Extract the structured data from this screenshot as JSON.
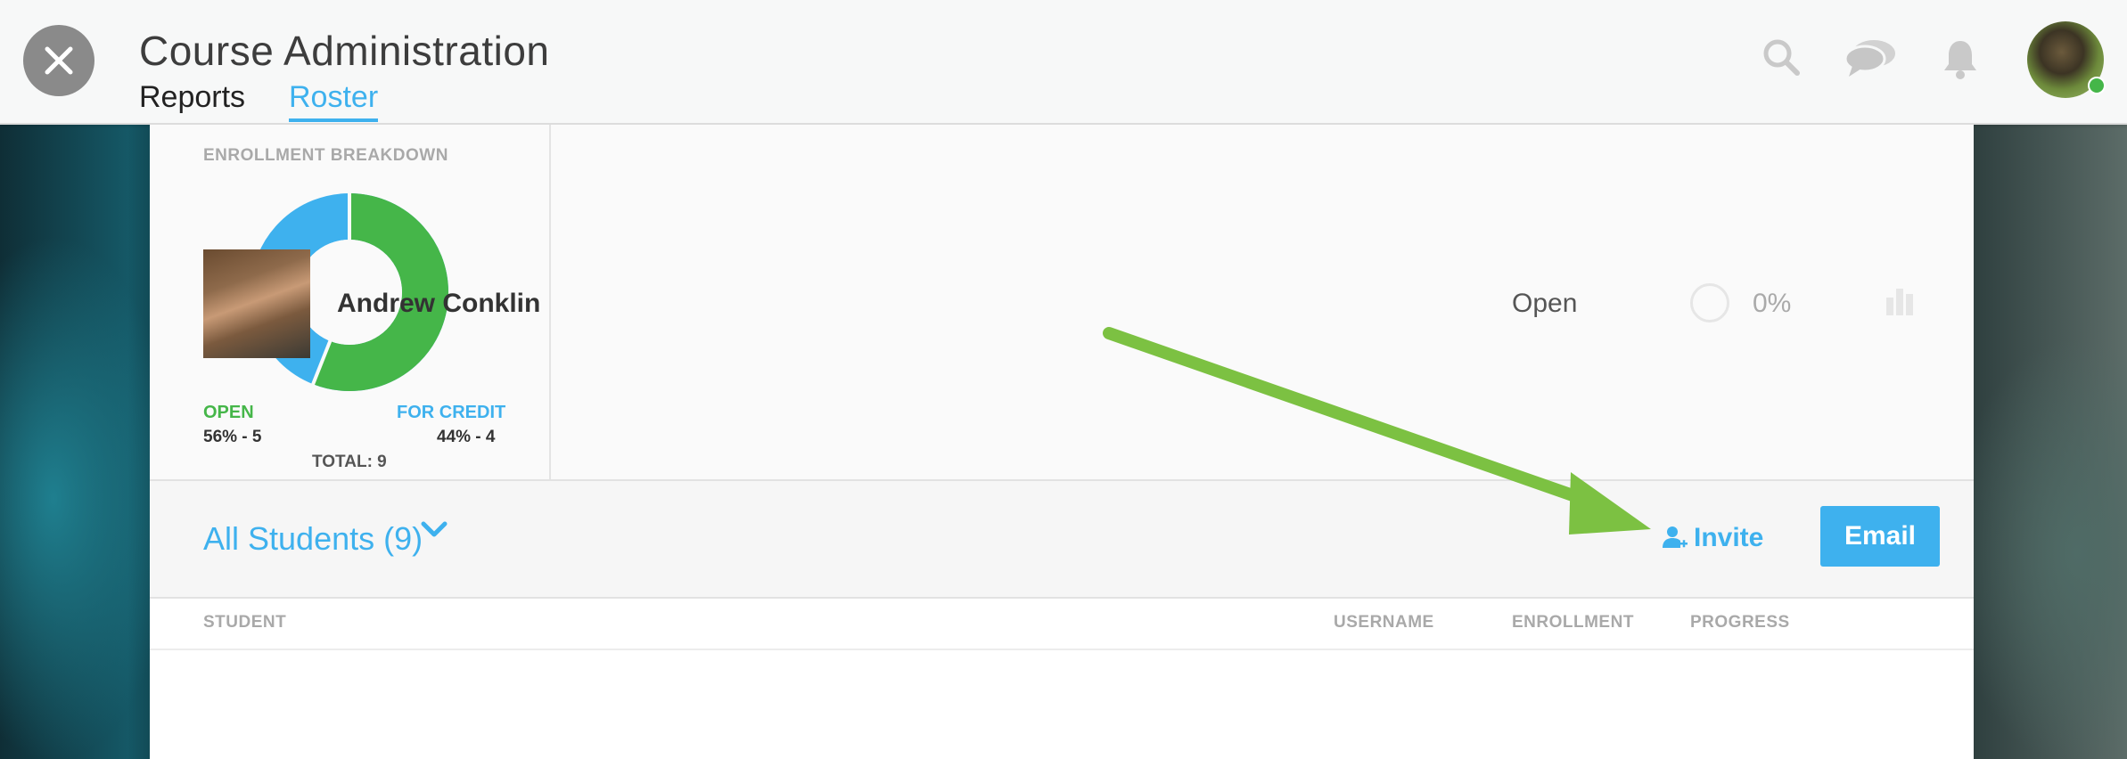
{
  "header": {
    "title": "Course Administration",
    "tabs": [
      {
        "label": "Reports",
        "active": false
      },
      {
        "label": "Roster",
        "active": true
      }
    ],
    "icons": [
      "search-icon",
      "chat-icon",
      "bell-icon"
    ],
    "online_color": "#45b649"
  },
  "enrollment": {
    "title": "ENROLLMENT BREAKDOWN",
    "open_label": "OPEN",
    "credit_label": "FOR CREDIT",
    "open_value": "56% - 5",
    "credit_value": "44% - 4",
    "total": "TOTAL: 9",
    "open_percent": 56,
    "credit_percent": 44,
    "open_color": "#45b649",
    "credit_color": "#3eb1ee"
  },
  "filter": {
    "label": "All Students (9)",
    "invite_label": "Invite",
    "email_label": "Email"
  },
  "table": {
    "columns": [
      "STUDENT",
      "USERNAME",
      "ENROLLMENT",
      "PROGRESS"
    ],
    "rows": [
      {
        "name": "Andrew Conklin",
        "username": "",
        "enrollment": "Open",
        "progress": "0%"
      }
    ]
  },
  "colors": {
    "accent": "#3eb1ee",
    "annotation_arrow": "#7cc142"
  }
}
